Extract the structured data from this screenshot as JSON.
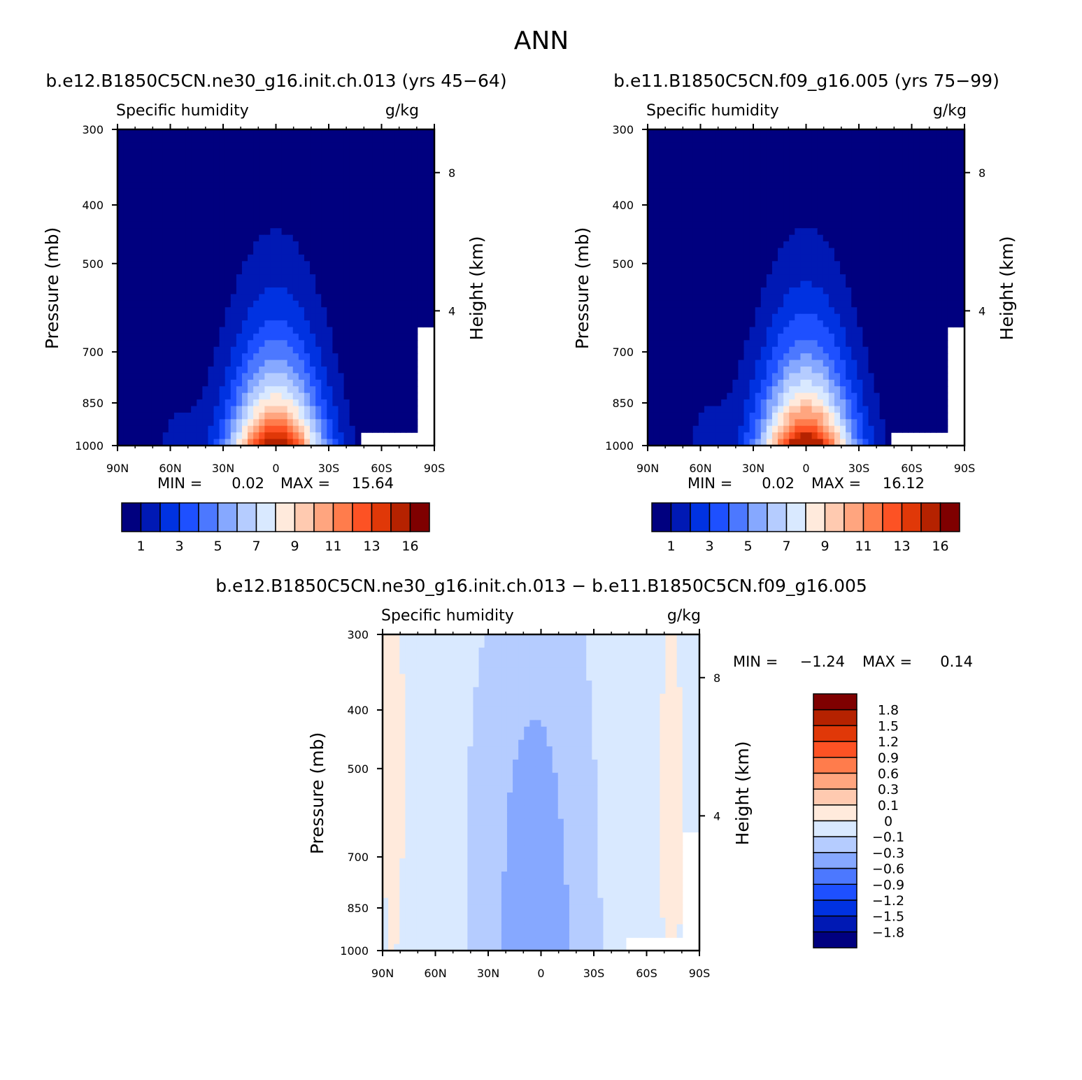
{
  "figure_title": "ANN",
  "chart_data": [
    {
      "type": "contour",
      "title": "b.e12.B1850C5CN.ne30_g16.init.ch.013 (yrs 45−64)",
      "left_string": "Specific humidity",
      "right_string": "g/kg",
      "ylabel": "Pressure (mb)",
      "ylabel_right": "Height (km)",
      "x_ticks": [
        "90N",
        "60N",
        "30N",
        "0",
        "30S",
        "60S",
        "90S"
      ],
      "x_range": [
        90,
        -90
      ],
      "y_ticks": [
        300,
        400,
        500,
        700,
        850,
        1000
      ],
      "y_range": [
        1000,
        300
      ],
      "y_scale": "log",
      "right_ticks": [
        8,
        4
      ],
      "min_label": "MIN =",
      "min_value": "0.02",
      "max_label": "MAX =",
      "max_value": "15.64",
      "levels": [
        1,
        2,
        3,
        4,
        5,
        6,
        7,
        8,
        9,
        10,
        11,
        12,
        13,
        14,
        16
      ],
      "colorbar_labels": [
        "1",
        "3",
        "5",
        "7",
        "9",
        "11",
        "13",
        "16"
      ],
      "colors": [
        "#00007f",
        "#0019b4",
        "#0032e1",
        "#1e50ff",
        "#4c78ff",
        "#86a8ff",
        "#b5ccff",
        "#d9e9ff",
        "#ffeadc",
        "#ffcab0",
        "#ffa57f",
        "#ff7c4c",
        "#fd5224",
        "#e03808",
        "#b52200",
        "#7f0000"
      ]
    },
    {
      "type": "contour",
      "title": "b.e11.B1850C5CN.f09_g16.005 (yrs 75−99)",
      "left_string": "Specific humidity",
      "right_string": "g/kg",
      "ylabel": "Pressure (mb)",
      "ylabel_right": "Height (km)",
      "x_ticks": [
        "90N",
        "60N",
        "30N",
        "0",
        "30S",
        "60S",
        "90S"
      ],
      "x_range": [
        90,
        -90
      ],
      "y_ticks": [
        300,
        400,
        500,
        700,
        850,
        1000
      ],
      "y_range": [
        1000,
        300
      ],
      "y_scale": "log",
      "right_ticks": [
        8,
        4
      ],
      "min_label": "MIN =",
      "min_value": "0.02",
      "max_label": "MAX =",
      "max_value": "16.12",
      "levels": [
        1,
        2,
        3,
        4,
        5,
        6,
        7,
        8,
        9,
        10,
        11,
        12,
        13,
        14,
        16
      ],
      "colorbar_labels": [
        "1",
        "3",
        "5",
        "7",
        "9",
        "11",
        "13",
        "16"
      ],
      "colors": [
        "#00007f",
        "#0019b4",
        "#0032e1",
        "#1e50ff",
        "#4c78ff",
        "#86a8ff",
        "#b5ccff",
        "#d9e9ff",
        "#ffeadc",
        "#ffcab0",
        "#ffa57f",
        "#ff7c4c",
        "#fd5224",
        "#e03808",
        "#b52200",
        "#7f0000"
      ]
    },
    {
      "type": "contour",
      "title": "b.e12.B1850C5CN.ne30_g16.init.ch.013 − b.e11.B1850C5CN.f09_g16.005",
      "left_string": "Specific humidity",
      "right_string": "g/kg",
      "ylabel": "Pressure (mb)",
      "ylabel_right": "Height (km)",
      "x_ticks": [
        "90N",
        "60N",
        "30N",
        "0",
        "30S",
        "60S",
        "90S"
      ],
      "x_range": [
        90,
        -90
      ],
      "y_ticks": [
        300,
        400,
        500,
        700,
        850,
        1000
      ],
      "y_range": [
        1000,
        300
      ],
      "y_scale": "log",
      "right_ticks": [
        8,
        4
      ],
      "min_label": "MIN =",
      "min_value": "−1.24",
      "max_label": "MAX =",
      "max_value": "0.14",
      "levels": [
        -1.8,
        -1.5,
        -1.2,
        -0.9,
        -0.6,
        -0.3,
        -0.1,
        0,
        0.1,
        0.3,
        0.6,
        0.9,
        1.2,
        1.5,
        1.8
      ],
      "colorbar_labels": [
        "1.8",
        "1.5",
        "1.2",
        "0.9",
        "0.6",
        "0.3",
        "0.1",
        "0",
        "−0.1",
        "−0.3",
        "−0.6",
        "−0.9",
        "−1.2",
        "−1.5",
        "−1.8"
      ],
      "colors": [
        "#7f0000",
        "#b52200",
        "#e03808",
        "#fd5224",
        "#ff7c4c",
        "#ffa57f",
        "#ffcab0",
        "#ffeadc",
        "#d9e9ff",
        "#b5ccff",
        "#86a8ff",
        "#4c78ff",
        "#1e50ff",
        "#0032e1",
        "#0019b4",
        "#00007f"
      ]
    }
  ]
}
